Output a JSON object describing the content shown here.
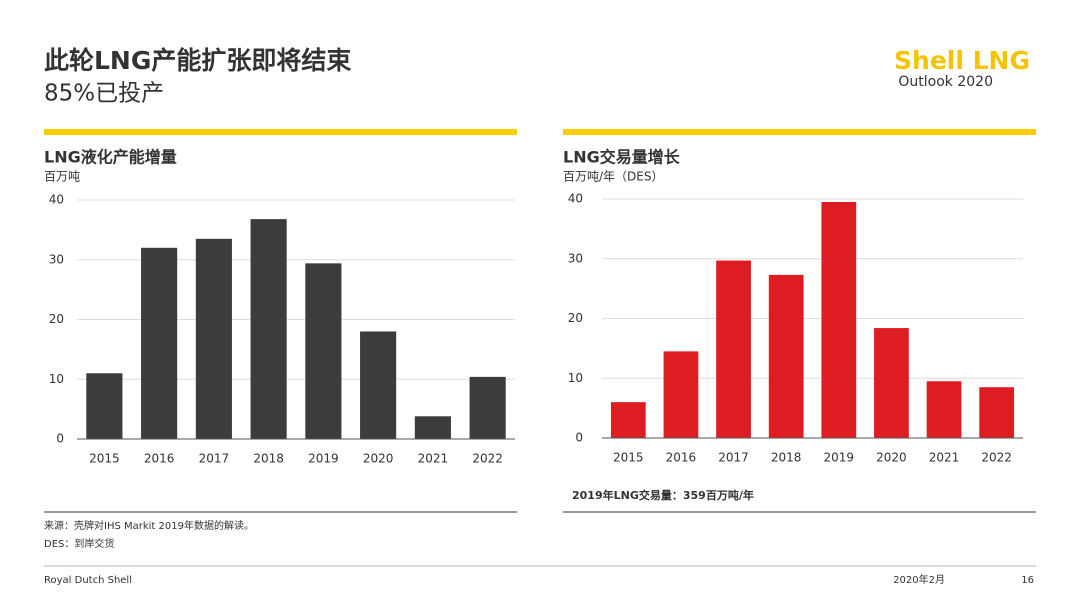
{
  "header": {
    "title": "此轮LNG产能扩张即将结束",
    "subtitle": "85%已投产"
  },
  "logo": {
    "name": "Shell LNG",
    "sub": "Outlook 2020"
  },
  "chart_data": [
    {
      "type": "bar",
      "title": "LNG液化产能增量",
      "y_label": "百万吨",
      "categories": [
        "2015",
        "2016",
        "2017",
        "2018",
        "2019",
        "2020",
        "2021",
        "2022"
      ],
      "values": [
        11,
        32,
        33.5,
        36.8,
        29.4,
        18,
        3.8,
        10.4
      ],
      "color": "#3c3c3c",
      "ylim": [
        0,
        40
      ],
      "yticks": [
        0,
        10,
        20,
        30,
        40
      ],
      "grid": true
    },
    {
      "type": "bar",
      "title": "LNG交易量增长",
      "y_label": "百万吨/年（DES）",
      "categories": [
        "2015",
        "2016",
        "2017",
        "2018",
        "2019",
        "2020",
        "2021",
        "2022"
      ],
      "values": [
        6,
        14.5,
        29.7,
        27.3,
        39.5,
        18.4,
        9.5,
        8.5
      ],
      "color": "#dd1d21",
      "ylim": [
        0,
        40
      ],
      "yticks": [
        0,
        10,
        20,
        30,
        40
      ],
      "grid": true,
      "annotation": "2019年LNG交易量：359百万吨/年"
    }
  ],
  "notes": [
    "来源：壳牌对IHS Markit 2019年数据的解读。",
    "DES：到岸交货"
  ],
  "footer": {
    "left": "Royal Dutch Shell",
    "date": "2020年2月",
    "page": "16"
  }
}
